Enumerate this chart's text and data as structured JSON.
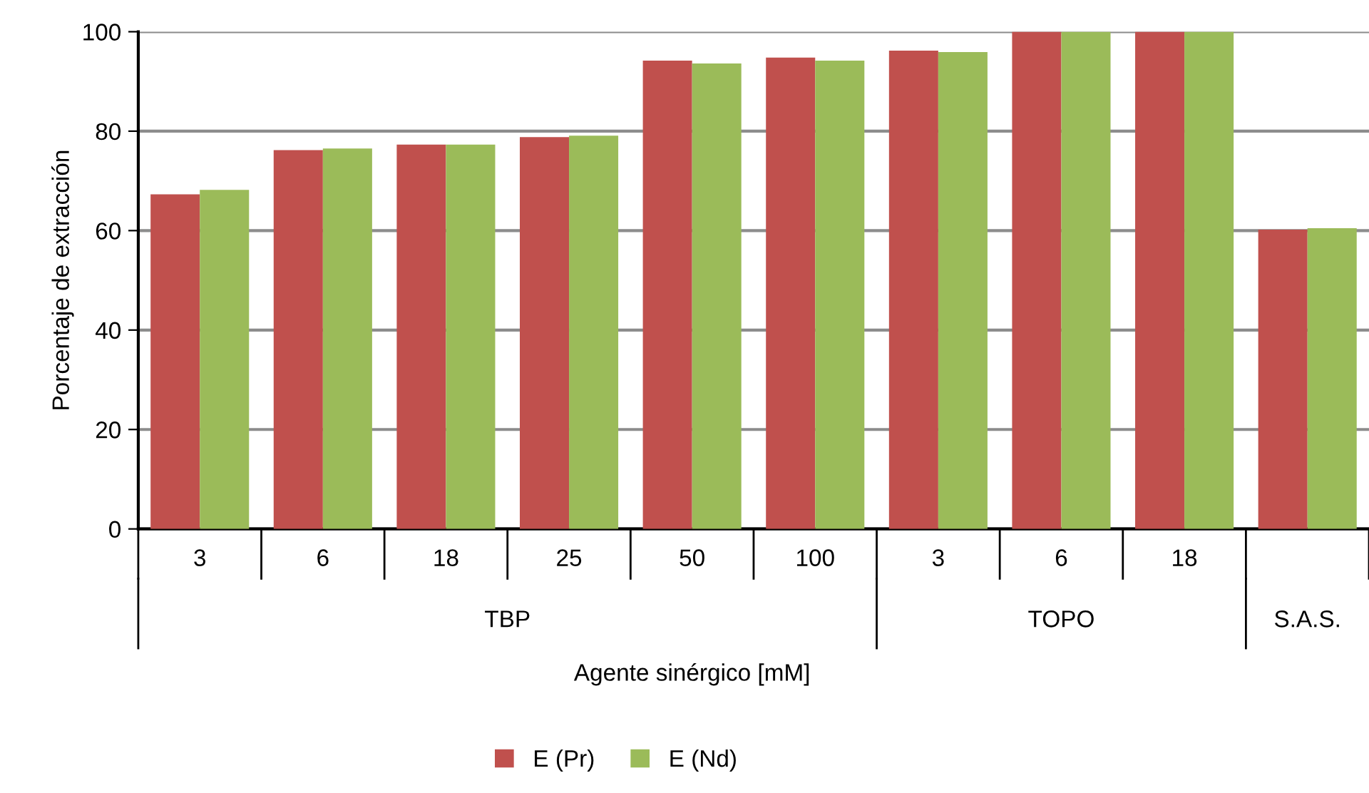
{
  "chart_data": {
    "type": "bar",
    "categories": [
      "3",
      "6",
      "18",
      "25",
      "50",
      "100",
      "3",
      "6",
      "18",
      null
    ],
    "series": [
      {
        "name": "E (Pr)",
        "color": "#c0504d",
        "values": [
          67.3,
          76.2,
          77.3,
          78.8,
          94.2,
          94.8,
          96.2,
          100,
          100,
          60.2
        ]
      },
      {
        "name": "E (Nd)",
        "color": "#9bbb59",
        "values": [
          68.2,
          76.5,
          77.3,
          79.1,
          93.6,
          94.2,
          95.9,
          100,
          100,
          60.5
        ]
      }
    ],
    "xlabel": "Agente sinérgico [mM]",
    "ylabel": "Porcentaje de extracción",
    "annotations": [
      "TBP",
      "TOPO",
      "S.A.S."
    ],
    "ylim": [
      0,
      100
    ],
    "yticks": [
      0,
      20,
      40,
      60,
      80,
      100
    ],
    "grid": "y",
    "legend": "bottom"
  }
}
